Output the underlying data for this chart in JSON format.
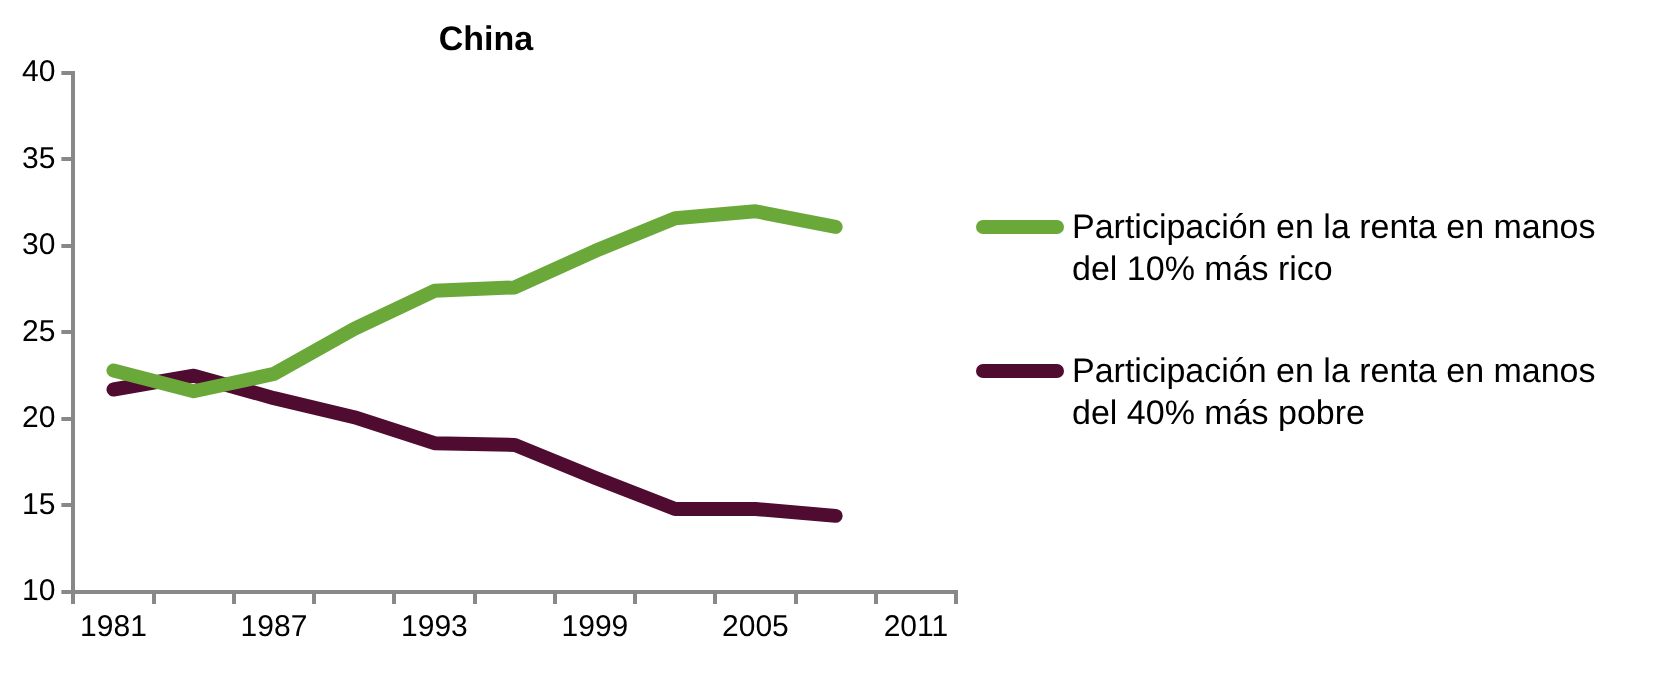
{
  "chart_data": {
    "type": "line",
    "title": "China",
    "categories": [
      "1981",
      null,
      "1987",
      null,
      "1993",
      null,
      "1999",
      null,
      "2005",
      null,
      "2011"
    ],
    "series": [
      {
        "name": "Participación en la renta en manos del 10% más rico",
        "color": "#6aa839",
        "values": [
          22.8,
          21.6,
          22.6,
          25.2,
          27.4,
          27.6,
          29.7,
          31.6,
          32.0,
          31.1,
          null
        ]
      },
      {
        "name": "Participación en la renta en manos del 40% más pobre",
        "color": "#4f0c30",
        "values": [
          21.7,
          22.5,
          21.2,
          20.1,
          18.6,
          18.5,
          16.6,
          14.8,
          14.8,
          14.4,
          null
        ]
      }
    ],
    "ylim": [
      10,
      40
    ],
    "yticks": [
      10,
      15,
      20,
      25,
      30,
      35,
      40
    ],
    "grid": false,
    "legend": "right",
    "marker": "none",
    "line_style": "solid"
  }
}
